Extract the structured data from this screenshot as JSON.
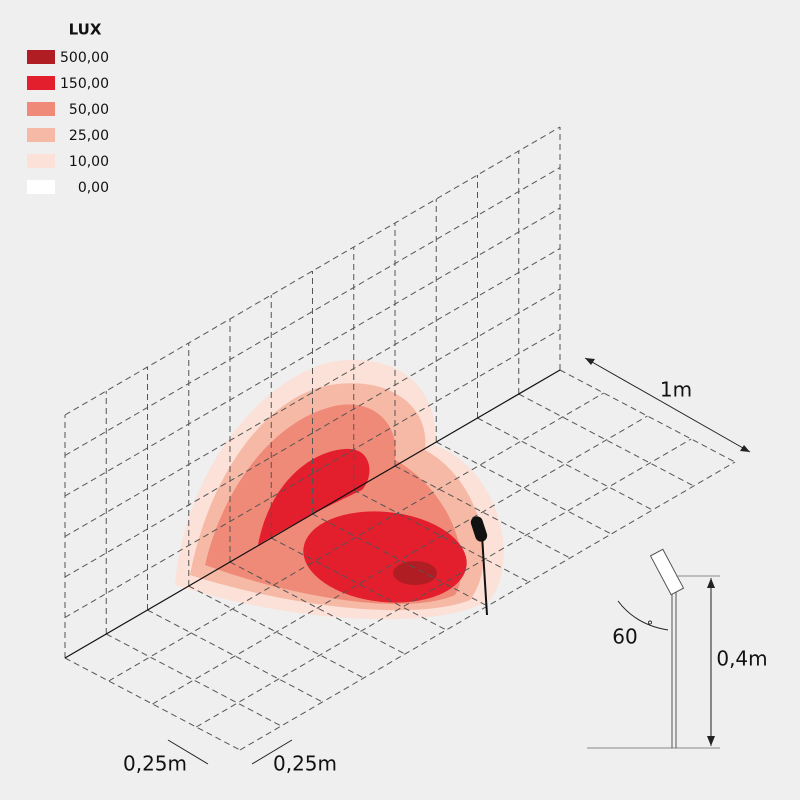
{
  "legend": {
    "title": "LUX",
    "items": [
      {
        "label": "500,00",
        "color": "#b01e23"
      },
      {
        "label": "150,00",
        "color": "#e31e2d"
      },
      {
        "label": "50,00",
        "color": "#ef8a78"
      },
      {
        "label": "25,00",
        "color": "#f6b9a5"
      },
      {
        "label": "10,00",
        "color": "#fbe1d8"
      },
      {
        "label": "0,00",
        "color": "#ffffff"
      }
    ]
  },
  "dimensions": {
    "length": "1m",
    "grid_x": "0,25m",
    "grid_y": "0,25m",
    "height": "0,4m",
    "angle": "60",
    "angle_unit": "°"
  }
}
